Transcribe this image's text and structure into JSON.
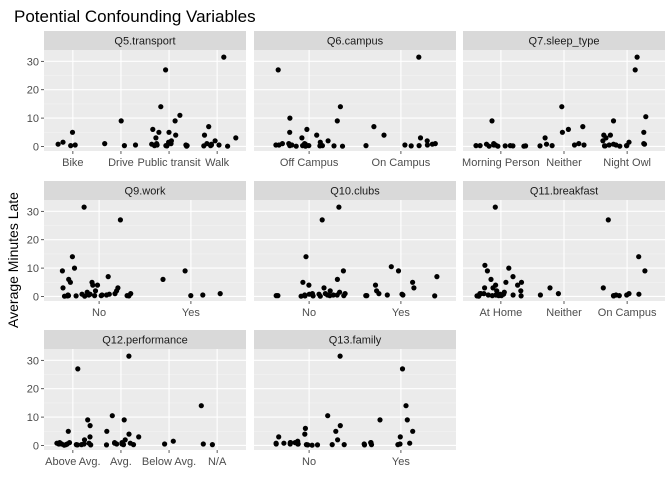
{
  "chart_data": {
    "type": "scatter",
    "title": "Potential Confounding Variables",
    "ylabel": "Average Minutes Late",
    "xlabel": "",
    "ylim": [
      -1.6,
      34
    ],
    "yticks": [
      0,
      10,
      20,
      30
    ],
    "grid": true,
    "point_color": "#000000",
    "panel_background": "#ebebeb",
    "strip_background": "#d9d9d9",
    "panels": [
      {
        "label": "Q5.transport",
        "categories": [
          "Bike",
          "Drive",
          "Public transit",
          "Walk"
        ],
        "groups": [
          [
            5,
            0.5,
            0.8,
            1.5,
            0.3
          ],
          [
            9,
            1,
            0.5,
            0.3
          ],
          [
            27,
            14,
            11,
            9,
            6,
            5,
            5,
            4,
            3,
            2,
            1.5,
            1,
            0.8,
            0.5,
            0.3,
            0.3,
            0.2,
            0.1,
            0.5,
            0.3,
            1
          ],
          [
            31.5,
            7,
            4,
            3,
            2,
            1,
            0.5,
            0.3,
            0.2,
            0.1,
            0.8,
            0.5
          ]
        ]
      },
      {
        "label": "Q6.campus",
        "categories": [
          "Off Campus",
          "On Campus"
        ],
        "groups": [
          [
            27,
            14,
            10,
            9,
            6,
            5,
            4,
            3,
            2,
            1.5,
            1,
            1,
            0.8,
            0.5,
            0.5,
            0.3,
            0.3,
            0.2,
            0.1,
            0.1,
            0.5,
            0.3,
            0.8,
            0.2,
            0.1,
            1,
            0.5,
            0.3
          ],
          [
            31.5,
            7,
            4,
            3,
            2,
            1,
            0.8,
            0.5,
            0.3,
            0.2,
            0.5,
            0.3
          ]
        ]
      },
      {
        "label": "Q7.sleep_type",
        "categories": [
          "Morning Person",
          "Neither",
          "Night Owl"
        ],
        "groups": [
          [
            9,
            1,
            0.8,
            0.5,
            0.3,
            0.2,
            0.1,
            0.1,
            0.3,
            0.5,
            0.2,
            0.1,
            0.3,
            0.2
          ],
          [
            14,
            7,
            6,
            5,
            3,
            1,
            0.5,
            0.3,
            0.2,
            0.8,
            0.5
          ],
          [
            31.5,
            27,
            10.5,
            9,
            5,
            4,
            4,
            3,
            2,
            1.5,
            1,
            0.8,
            0.5,
            0.3,
            0.2,
            0.5,
            0.3,
            0.2,
            0.1,
            0.8
          ]
        ]
      },
      {
        "label": "Q9.work",
        "categories": [
          "No",
          "Yes"
        ],
        "groups": [
          [
            31.5,
            27,
            14,
            10,
            9,
            7,
            6,
            5,
            5,
            4,
            4,
            3,
            3,
            2,
            2,
            1.5,
            1,
            1,
            0.8,
            0.8,
            0.5,
            0.5,
            0.3,
            0.3,
            0.2,
            0.2,
            0.1,
            0.1,
            0.5,
            0.3,
            0.8,
            0.5,
            0.2,
            0.3
          ],
          [
            9,
            6,
            1,
            0.5,
            0.3
          ]
        ]
      },
      {
        "label": "Q10.clubs",
        "categories": [
          "No",
          "Yes"
        ],
        "groups": [
          [
            31.5,
            27,
            14,
            9,
            6,
            5,
            4,
            3,
            2,
            1.5,
            1,
            1,
            0.8,
            0.5,
            0.5,
            0.3,
            0.3,
            0.2,
            0.1,
            0.1,
            0.5,
            0.3,
            0.8,
            0.2,
            0.5,
            1,
            0.3
          ],
          [
            10.5,
            9,
            7,
            5,
            4,
            3,
            2,
            1,
            0.5,
            0.5,
            0.3,
            0.2,
            0.8,
            0.3
          ]
        ]
      },
      {
        "label": "Q11.breakfast",
        "categories": [
          "At Home",
          "Neither",
          "On Campus"
        ],
        "groups": [
          [
            31.5,
            11,
            10,
            9,
            7,
            6,
            5,
            5,
            4,
            4,
            3,
            3,
            2,
            2,
            1.5,
            1,
            1,
            0.8,
            0.5,
            0.5,
            0.3,
            0.3,
            0.2,
            0.1,
            0.5,
            0.3,
            0.8,
            0.2,
            1,
            0.5
          ],
          [
            3,
            1,
            0.5
          ],
          [
            27,
            14,
            9,
            3,
            1,
            0.5,
            0.3,
            0.2,
            0.8,
            0.5,
            0.3
          ]
        ]
      },
      {
        "label": "Q12.performance",
        "categories": [
          "Above Avg.",
          "Avg.",
          "Below Avg.",
          "N/A"
        ],
        "groups": [
          [
            27,
            9,
            7,
            5,
            3,
            2,
            1,
            0.8,
            0.5,
            0.5,
            0.3,
            0.3,
            0.2,
            0.1,
            0.5,
            0.3,
            1,
            0.8,
            0.2,
            0.5
          ],
          [
            31.5,
            10.5,
            9,
            5,
            4,
            3,
            2,
            1,
            0.8,
            0.5,
            0.3,
            0.2,
            0.5,
            0.3,
            0.8,
            1,
            0.5
          ],
          [
            1.5,
            0.5
          ],
          [
            14,
            0.5,
            0.3
          ]
        ]
      },
      {
        "label": "Q13.family",
        "categories": [
          "No",
          "Yes"
        ],
        "groups": [
          [
            31.5,
            10.5,
            7,
            6,
            5,
            4,
            3,
            2,
            1.5,
            1,
            1,
            0.8,
            0.5,
            0.5,
            0.3,
            0.3,
            0.2,
            0.1,
            0.5,
            0.3,
            0.8,
            0.2,
            1,
            0.5
          ],
          [
            27,
            14,
            9,
            9,
            5,
            3,
            1,
            0.5,
            0.5,
            0.3,
            0.2,
            0.8,
            0.3,
            1
          ]
        ]
      }
    ]
  }
}
